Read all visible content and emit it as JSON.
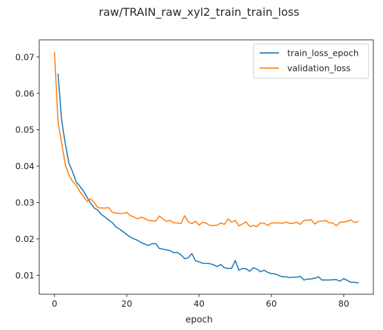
{
  "chart_data": {
    "type": "line",
    "title": "raw/TRAIN_raw_xyl2_train_train_loss",
    "xlabel": "epoch",
    "ylabel": "",
    "xlim": [
      -4.2,
      88.2
    ],
    "ylim": [
      0.0048,
      0.0747
    ],
    "xticks": [
      0,
      20,
      40,
      60,
      80
    ],
    "yticks": [
      0.01,
      0.02,
      0.03,
      0.04,
      0.05,
      0.06,
      0.07
    ],
    "grid": false,
    "legend_position": "top-right",
    "series": [
      {
        "name": "train_loss_epoch",
        "color": "#1f77b4",
        "x": [
          1,
          2,
          3,
          4,
          5,
          6,
          7,
          8,
          9,
          10,
          11,
          12,
          13,
          14,
          15,
          16,
          17,
          18,
          19,
          20,
          21,
          22,
          23,
          24,
          25,
          26,
          27,
          28,
          29,
          30,
          31,
          32,
          33,
          34,
          35,
          36,
          37,
          38,
          39,
          40,
          41,
          42,
          43,
          44,
          45,
          46,
          47,
          48,
          49,
          50,
          51,
          52,
          53,
          54,
          55,
          56,
          57,
          58,
          59,
          60,
          61,
          62,
          63,
          64,
          65,
          66,
          67,
          68,
          69,
          70,
          71,
          72,
          73,
          74,
          75,
          76,
          77,
          78,
          79,
          80,
          81,
          82,
          83,
          84
        ],
        "y": [
          0.0653,
          0.0525,
          0.0462,
          0.0408,
          0.0385,
          0.0357,
          0.0345,
          0.0332,
          0.0315,
          0.0298,
          0.0285,
          0.0279,
          0.0267,
          0.026,
          0.0252,
          0.0245,
          0.0233,
          0.0227,
          0.022,
          0.0212,
          0.0205,
          0.02,
          0.0196,
          0.019,
          0.0186,
          0.0182,
          0.0187,
          0.0187,
          0.0174,
          0.0172,
          0.017,
          0.0168,
          0.0162,
          0.0163,
          0.0156,
          0.0146,
          0.0148,
          0.016,
          0.014,
          0.0137,
          0.0133,
          0.0133,
          0.0132,
          0.0129,
          0.0124,
          0.013,
          0.0121,
          0.0119,
          0.0119,
          0.0141,
          0.0114,
          0.0119,
          0.0118,
          0.0111,
          0.0121,
          0.0117,
          0.011,
          0.0114,
          0.0108,
          0.0105,
          0.0104,
          0.01,
          0.0096,
          0.0096,
          0.0094,
          0.0095,
          0.0095,
          0.0097,
          0.0087,
          0.009,
          0.009,
          0.0092,
          0.0096,
          0.0087,
          0.0087,
          0.0087,
          0.0088,
          0.0088,
          0.0084,
          0.0091,
          0.0086,
          0.0081,
          0.0081,
          0.0079
        ]
      },
      {
        "name": "validation_loss",
        "color": "#ff7f0e",
        "x": [
          0,
          1,
          2,
          3,
          4,
          5,
          6,
          7,
          8,
          9,
          10,
          11,
          12,
          13,
          14,
          15,
          16,
          17,
          18,
          19,
          20,
          21,
          22,
          23,
          24,
          25,
          26,
          27,
          28,
          29,
          30,
          31,
          32,
          33,
          34,
          35,
          36,
          37,
          38,
          39,
          40,
          41,
          42,
          43,
          44,
          45,
          46,
          47,
          48,
          49,
          50,
          51,
          52,
          53,
          54,
          55,
          56,
          57,
          58,
          59,
          60,
          61,
          62,
          63,
          64,
          65,
          66,
          67,
          68,
          69,
          70,
          71,
          72,
          73,
          74,
          75,
          76,
          77,
          78,
          79,
          80,
          81,
          82,
          83,
          84
        ],
        "y": [
          0.0713,
          0.0522,
          0.0462,
          0.0404,
          0.0376,
          0.0358,
          0.0348,
          0.033,
          0.0318,
          0.0303,
          0.031,
          0.03,
          0.0286,
          0.0285,
          0.0285,
          0.0286,
          0.0273,
          0.0271,
          0.027,
          0.027,
          0.0273,
          0.0264,
          0.026,
          0.0255,
          0.026,
          0.0256,
          0.0251,
          0.025,
          0.0249,
          0.0263,
          0.0255,
          0.0248,
          0.0251,
          0.0244,
          0.0244,
          0.0242,
          0.0264,
          0.0247,
          0.0242,
          0.0249,
          0.0238,
          0.0246,
          0.0243,
          0.0237,
          0.0237,
          0.0238,
          0.0244,
          0.024,
          0.0255,
          0.0246,
          0.0251,
          0.0236,
          0.0241,
          0.0247,
          0.0234,
          0.0237,
          0.0234,
          0.0244,
          0.0243,
          0.0237,
          0.0244,
          0.0244,
          0.0244,
          0.0243,
          0.0246,
          0.0243,
          0.0243,
          0.0246,
          0.024,
          0.0251,
          0.0251,
          0.0253,
          0.0241,
          0.0248,
          0.0249,
          0.0251,
          0.0244,
          0.0244,
          0.0236,
          0.0246,
          0.0246,
          0.0249,
          0.0252,
          0.0245,
          0.0248
        ]
      }
    ]
  }
}
